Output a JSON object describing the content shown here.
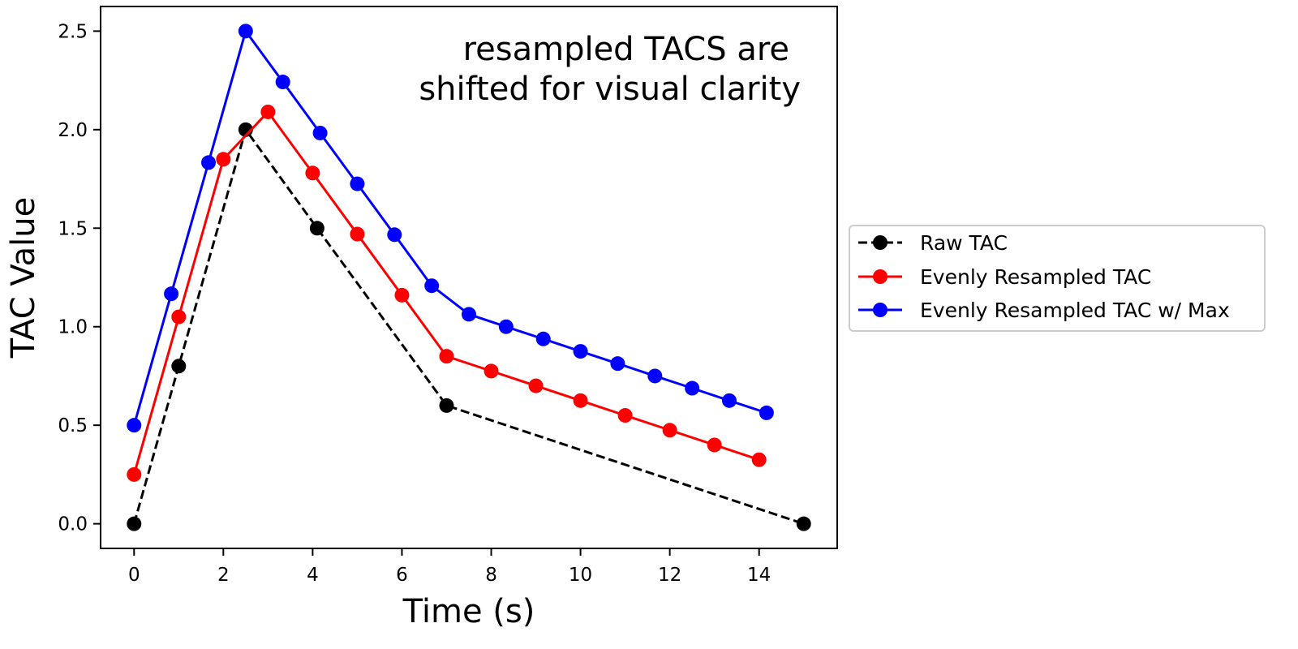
{
  "chart_data": {
    "type": "line",
    "xlabel": "Time (s)",
    "ylabel": "TAC Value",
    "xlim": [
      -0.75,
      15.75
    ],
    "ylim": [
      -0.125,
      2.625
    ],
    "xticks": [
      0,
      2,
      4,
      6,
      8,
      10,
      12,
      14
    ],
    "xtick_labels": [
      "0",
      "2",
      "4",
      "6",
      "8",
      "10",
      "12",
      "14"
    ],
    "yticks": [
      0.0,
      0.5,
      1.0,
      1.5,
      2.0,
      2.5
    ],
    "ytick_labels": [
      "0.0",
      "0.5",
      "1.0",
      "1.5",
      "2.0",
      "2.5"
    ],
    "grid": false,
    "legend_position": "outside-right",
    "annotation": {
      "lines": [
        "resampled TACS are",
        "shifted for visual clarity"
      ],
      "position": "top-right"
    },
    "series": [
      {
        "name": "Raw TAC",
        "color": "#000000",
        "line_style": "dashed",
        "marker": "circle",
        "x": [
          0,
          1,
          2.5,
          4.1,
          7,
          15
        ],
        "y": [
          0.0,
          0.8,
          2.0,
          1.5,
          0.6,
          0.0
        ]
      },
      {
        "name": "Evenly Resampled TAC",
        "color": "#ff0000",
        "line_style": "solid",
        "marker": "circle",
        "x": [
          0,
          1,
          2,
          3,
          4,
          5,
          6,
          7,
          8,
          9,
          10,
          11,
          12,
          13,
          14
        ],
        "y": [
          0.25,
          1.05,
          1.85,
          2.09,
          1.78,
          1.47,
          1.16,
          0.85,
          0.775,
          0.7,
          0.625,
          0.55,
          0.475,
          0.4,
          0.325
        ]
      },
      {
        "name": "Evenly Resampled TAC w/ Max",
        "color": "#0000ff",
        "line_style": "solid",
        "marker": "circle",
        "x": [
          0,
          0.833,
          1.667,
          2.5,
          3.333,
          4.167,
          5.0,
          5.833,
          6.667,
          7.5,
          8.333,
          9.167,
          10.0,
          10.833,
          11.667,
          12.5,
          13.333,
          14.167
        ],
        "y": [
          0.5,
          1.167,
          1.833,
          2.5,
          2.242,
          1.983,
          1.725,
          1.467,
          1.208,
          1.063,
          1.0,
          0.938,
          0.875,
          0.813,
          0.75,
          0.688,
          0.625,
          0.563
        ]
      }
    ]
  }
}
